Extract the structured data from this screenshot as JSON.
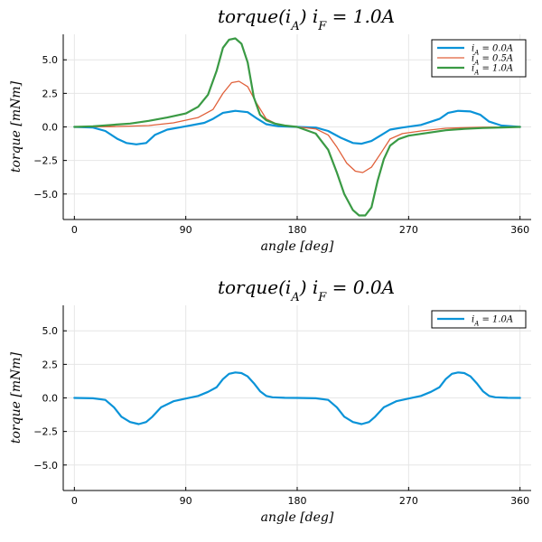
{
  "chart_data": [
    {
      "type": "line",
      "title": "torque(i_A)   i_F = 1.0A",
      "xlabel": "angle  [deg]",
      "ylabel": "torque [mNm]",
      "xlim": [
        -9,
        369
      ],
      "ylim": [
        -6.9,
        6.9
      ],
      "xticks": [
        0,
        90,
        180,
        270,
        360
      ],
      "yticks": [
        -5.0,
        -2.5,
        0.0,
        2.5,
        5.0
      ],
      "grid": true,
      "legend_position": "top-right",
      "series": [
        {
          "name": "i_A = 0.0A",
          "color": "#0a93d8",
          "width": 2.2,
          "x": [
            0,
            15,
            25,
            35,
            42,
            50,
            58,
            65,
            75,
            90,
            105,
            112,
            120,
            130,
            140,
            148,
            155,
            165,
            180,
            195,
            205,
            215,
            225,
            232,
            240,
            248,
            255,
            265,
            280,
            295,
            302,
            310,
            320,
            328,
            335,
            345,
            360
          ],
          "y": [
            0,
            -0.05,
            -0.3,
            -0.9,
            -1.2,
            -1.3,
            -1.2,
            -0.6,
            -0.2,
            0.05,
            0.3,
            0.6,
            1.05,
            1.2,
            1.1,
            0.6,
            0.2,
            0.05,
            0,
            -0.05,
            -0.3,
            -0.8,
            -1.2,
            -1.25,
            -1.05,
            -0.6,
            -0.2,
            -0.05,
            0.15,
            0.6,
            1.05,
            1.2,
            1.15,
            0.9,
            0.4,
            0.1,
            0
          ]
        },
        {
          "name": "i_A = 0.5A",
          "color": "#e0603a",
          "width": 1.3,
          "x": [
            0,
            30,
            60,
            80,
            100,
            112,
            120,
            127,
            133,
            140,
            147,
            155,
            165,
            180,
            195,
            205,
            212,
            220,
            227,
            233,
            240,
            248,
            255,
            265,
            280,
            300,
            330,
            360
          ],
          "y": [
            0,
            0.02,
            0.1,
            0.3,
            0.7,
            1.3,
            2.5,
            3.3,
            3.4,
            3.0,
            1.8,
            0.6,
            0.15,
            0,
            -0.15,
            -0.6,
            -1.5,
            -2.7,
            -3.3,
            -3.4,
            -3.0,
            -1.9,
            -0.9,
            -0.5,
            -0.3,
            -0.1,
            -0.02,
            0
          ]
        },
        {
          "name": "i_A = 1.0A",
          "color": "#3a9a44",
          "width": 2.2,
          "x": [
            0,
            15,
            30,
            45,
            60,
            75,
            90,
            100,
            108,
            115,
            120,
            125,
            130,
            135,
            140,
            145,
            150,
            155,
            162,
            170,
            180,
            195,
            205,
            212,
            218,
            225,
            230,
            235,
            240,
            245,
            250,
            255,
            262,
            270,
            285,
            300,
            315,
            330,
            345,
            360
          ],
          "y": [
            0,
            0.05,
            0.15,
            0.25,
            0.45,
            0.7,
            1.0,
            1.5,
            2.4,
            4.2,
            5.9,
            6.5,
            6.6,
            6.2,
            4.8,
            2.2,
            0.9,
            0.5,
            0.25,
            0.1,
            0,
            -0.5,
            -1.7,
            -3.4,
            -5.0,
            -6.2,
            -6.6,
            -6.6,
            -6.0,
            -4.0,
            -2.4,
            -1.4,
            -0.9,
            -0.65,
            -0.45,
            -0.25,
            -0.15,
            -0.08,
            -0.04,
            0
          ]
        }
      ]
    },
    {
      "type": "line",
      "title": "torque(i_A)   i_F = 0.0A",
      "xlabel": "angle  [deg]",
      "ylabel": "torque [mNm]",
      "xlim": [
        -9,
        369
      ],
      "ylim": [
        -6.9,
        6.9
      ],
      "xticks": [
        0,
        90,
        180,
        270,
        360
      ],
      "yticks": [
        -5.0,
        -2.5,
        0.0,
        2.5,
        5.0
      ],
      "grid": true,
      "legend_position": "top-right",
      "series": [
        {
          "name": "i_A = 1.0A",
          "color": "#0a93d8",
          "width": 2.2,
          "x": [
            0,
            15,
            25,
            32,
            38,
            45,
            52,
            58,
            63,
            70,
            80,
            90,
            100,
            108,
            115,
            120,
            125,
            130,
            135,
            140,
            145,
            150,
            155,
            160,
            170,
            180,
            195,
            205,
            212,
            218,
            225,
            232,
            238,
            243,
            250,
            260,
            270,
            280,
            288,
            295,
            300,
            305,
            310,
            315,
            320,
            325,
            330,
            335,
            340,
            350,
            360
          ],
          "y": [
            0,
            -0.03,
            -0.15,
            -0.7,
            -1.4,
            -1.8,
            -1.95,
            -1.8,
            -1.4,
            -0.7,
            -0.25,
            -0.05,
            0.15,
            0.45,
            0.8,
            1.4,
            1.8,
            1.9,
            1.85,
            1.6,
            1.1,
            0.5,
            0.15,
            0.05,
            0.01,
            0,
            -0.03,
            -0.15,
            -0.7,
            -1.4,
            -1.8,
            -1.95,
            -1.8,
            -1.4,
            -0.7,
            -0.25,
            -0.05,
            0.15,
            0.45,
            0.8,
            1.4,
            1.8,
            1.9,
            1.85,
            1.6,
            1.1,
            0.5,
            0.15,
            0.05,
            0.01,
            0
          ]
        }
      ]
    }
  ]
}
